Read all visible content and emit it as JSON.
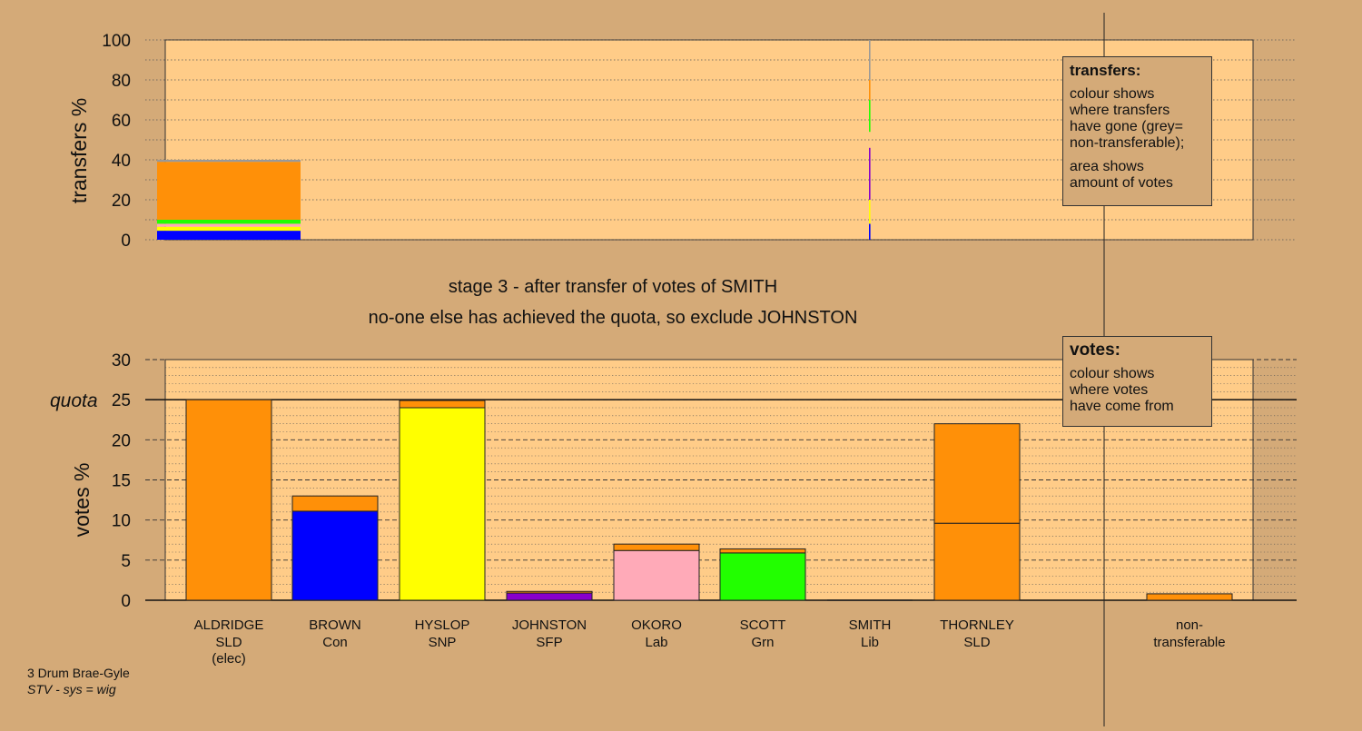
{
  "stage_line": "stage 3 - after transfer of votes of SMITH",
  "status_line": "no-one else has achieved the quota, so exclude JOHNSTON",
  "footer": {
    "constituency": "3 Drum Brae-Gyle",
    "system": "STV - sys = wig"
  },
  "legend_transfers": {
    "title": "transfers:",
    "lines": [
      "colour shows\nwhere transfers\nhave gone (grey=\nnon-transferable);",
      "area shows\namount of votes"
    ]
  },
  "legend_votes": {
    "title": "votes:",
    "lines": [
      "colour shows\nwhere votes\nhave come from"
    ]
  },
  "colors": {
    "background": "#d4aa78",
    "plot_background": "#ffcc88",
    "ALDRIDGE": "#ff9008",
    "BROWN": "#0000ff",
    "HYSLOP": "#ffff00",
    "JOHNSTON": "#8800cc",
    "OKORO": "#ffaab8",
    "SCOTT": "#22ff00",
    "SMITH": "#ffcc88",
    "THORNLEY": "#ff9008",
    "non_transferable": "#999999"
  },
  "chart_data": [
    {
      "type": "bar",
      "role": "transfers",
      "ylabel": "transfers %",
      "ylim": [
        0,
        100
      ],
      "yticks": [
        0,
        20,
        40,
        60,
        80,
        100
      ],
      "grid": true,
      "bars": [
        {
          "from": "SMITH",
          "segments": [
            {
              "to": "BROWN",
              "value": 4.5
            },
            {
              "to": "HYSLOP",
              "value": 2.0
            },
            {
              "to": "OKORO",
              "value": 1.5
            },
            {
              "to": "SCOTT",
              "value": 2.0
            },
            {
              "to": "THORNLEY",
              "value": 29.0
            },
            {
              "to": "non_transferable",
              "value": 1.0
            }
          ]
        }
      ],
      "slivers": [
        {
          "to": "BROWN",
          "from": 0,
          "to_value": 8
        },
        {
          "to": "HYSLOP",
          "from": 8,
          "to_value": 20
        },
        {
          "to": "JOHNSTON",
          "from": 20,
          "to_value": 46
        },
        {
          "to": "SCOTT",
          "from": 54,
          "to_value": 70
        },
        {
          "to": "THORNLEY",
          "from": 70,
          "to_value": 80
        },
        {
          "to": "non_transferable",
          "from": 80,
          "to_value": 100
        }
      ]
    },
    {
      "type": "bar",
      "role": "votes",
      "ylabel": "votes %",
      "ylim": [
        0,
        30
      ],
      "yticks": [
        0,
        5,
        10,
        15,
        20,
        25,
        30
      ],
      "quota": 25,
      "quota_label": "quota",
      "grid": true,
      "candidates": [
        {
          "name": "ALDRIDGE",
          "party": "SLD",
          "note": "(elec)",
          "segments": [
            {
              "source": "ALDRIDGE",
              "value": 25.0
            }
          ]
        },
        {
          "name": "BROWN",
          "party": "Con",
          "note": "",
          "segments": [
            {
              "source": "BROWN",
              "value": 11.1
            },
            {
              "source": "ALDRIDGE",
              "value": 1.9
            }
          ]
        },
        {
          "name": "HYSLOP",
          "party": "SNP",
          "note": "",
          "segments": [
            {
              "source": "HYSLOP",
              "value": 24.0
            },
            {
              "source": "ALDRIDGE",
              "value": 0.9
            }
          ]
        },
        {
          "name": "JOHNSTON",
          "party": "SFP",
          "note": "",
          "segments": [
            {
              "source": "JOHNSTON",
              "value": 0.9
            },
            {
              "source": "ALDRIDGE",
              "value": 0.2
            }
          ]
        },
        {
          "name": "OKORO",
          "party": "Lab",
          "note": "",
          "segments": [
            {
              "source": "OKORO",
              "value": 6.2
            },
            {
              "source": "ALDRIDGE",
              "value": 0.8
            }
          ]
        },
        {
          "name": "SCOTT",
          "party": "Grn",
          "note": "",
          "segments": [
            {
              "source": "SCOTT",
              "value": 5.9
            },
            {
              "source": "ALDRIDGE",
              "value": 0.5
            }
          ]
        },
        {
          "name": "SMITH",
          "party": "Lib",
          "note": "",
          "segments": [
            {
              "source": "SMITH",
              "value": 0.0
            }
          ]
        },
        {
          "name": "THORNLEY",
          "party": "SLD",
          "note": "",
          "segments": [
            {
              "source": "THORNLEY",
              "value": 9.6
            },
            {
              "source": "ALDRIDGE",
              "value": 12.4
            }
          ]
        }
      ],
      "non_transferable": {
        "label": "non-\ntransferable",
        "segments": [
          {
            "source": "ALDRIDGE",
            "value": 0.8
          }
        ]
      }
    }
  ]
}
